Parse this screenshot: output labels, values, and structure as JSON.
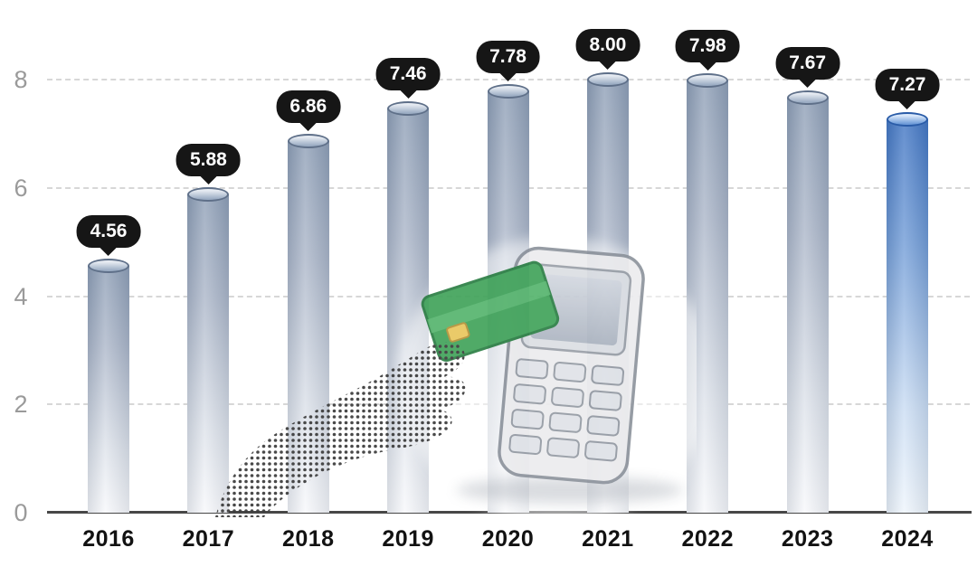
{
  "chart_data": {
    "type": "bar",
    "title": "",
    "categories": [
      "2016",
      "2017",
      "2018",
      "2019",
      "2020",
      "2021",
      "2022",
      "2023",
      "2024"
    ],
    "values": [
      4.56,
      5.88,
      6.86,
      7.46,
      7.78,
      8.0,
      7.98,
      7.67,
      7.27
    ],
    "value_label_format": "2-decimals",
    "xlabel": "",
    "ylabel": "",
    "ylim": [
      0,
      8.6
    ],
    "yticks": [
      0,
      2,
      4,
      6,
      8
    ],
    "grid": "horizontal-dashed",
    "legend": "none",
    "highlight_index": 8,
    "bar_style": "3d-cylinder-gradient",
    "colors": {
      "bar_top": "#8b9cb4",
      "bar_fade": "#f7f8fb",
      "highlight_bar_top": "#3a70c1",
      "highlight_bar_fade": "#eef5fc",
      "callout_bg": "#161616",
      "callout_text": "#ffffff",
      "y_tick_text": "#9a9a9a",
      "x_tick_text": "#121212",
      "gridline": "#d7d7d7",
      "axis_line": "#474747"
    }
  },
  "illustration": {
    "name": "hand-holding-bank-card-at-pos-terminal",
    "card_color": "#43a45c",
    "terminal_color": "#ececee"
  }
}
